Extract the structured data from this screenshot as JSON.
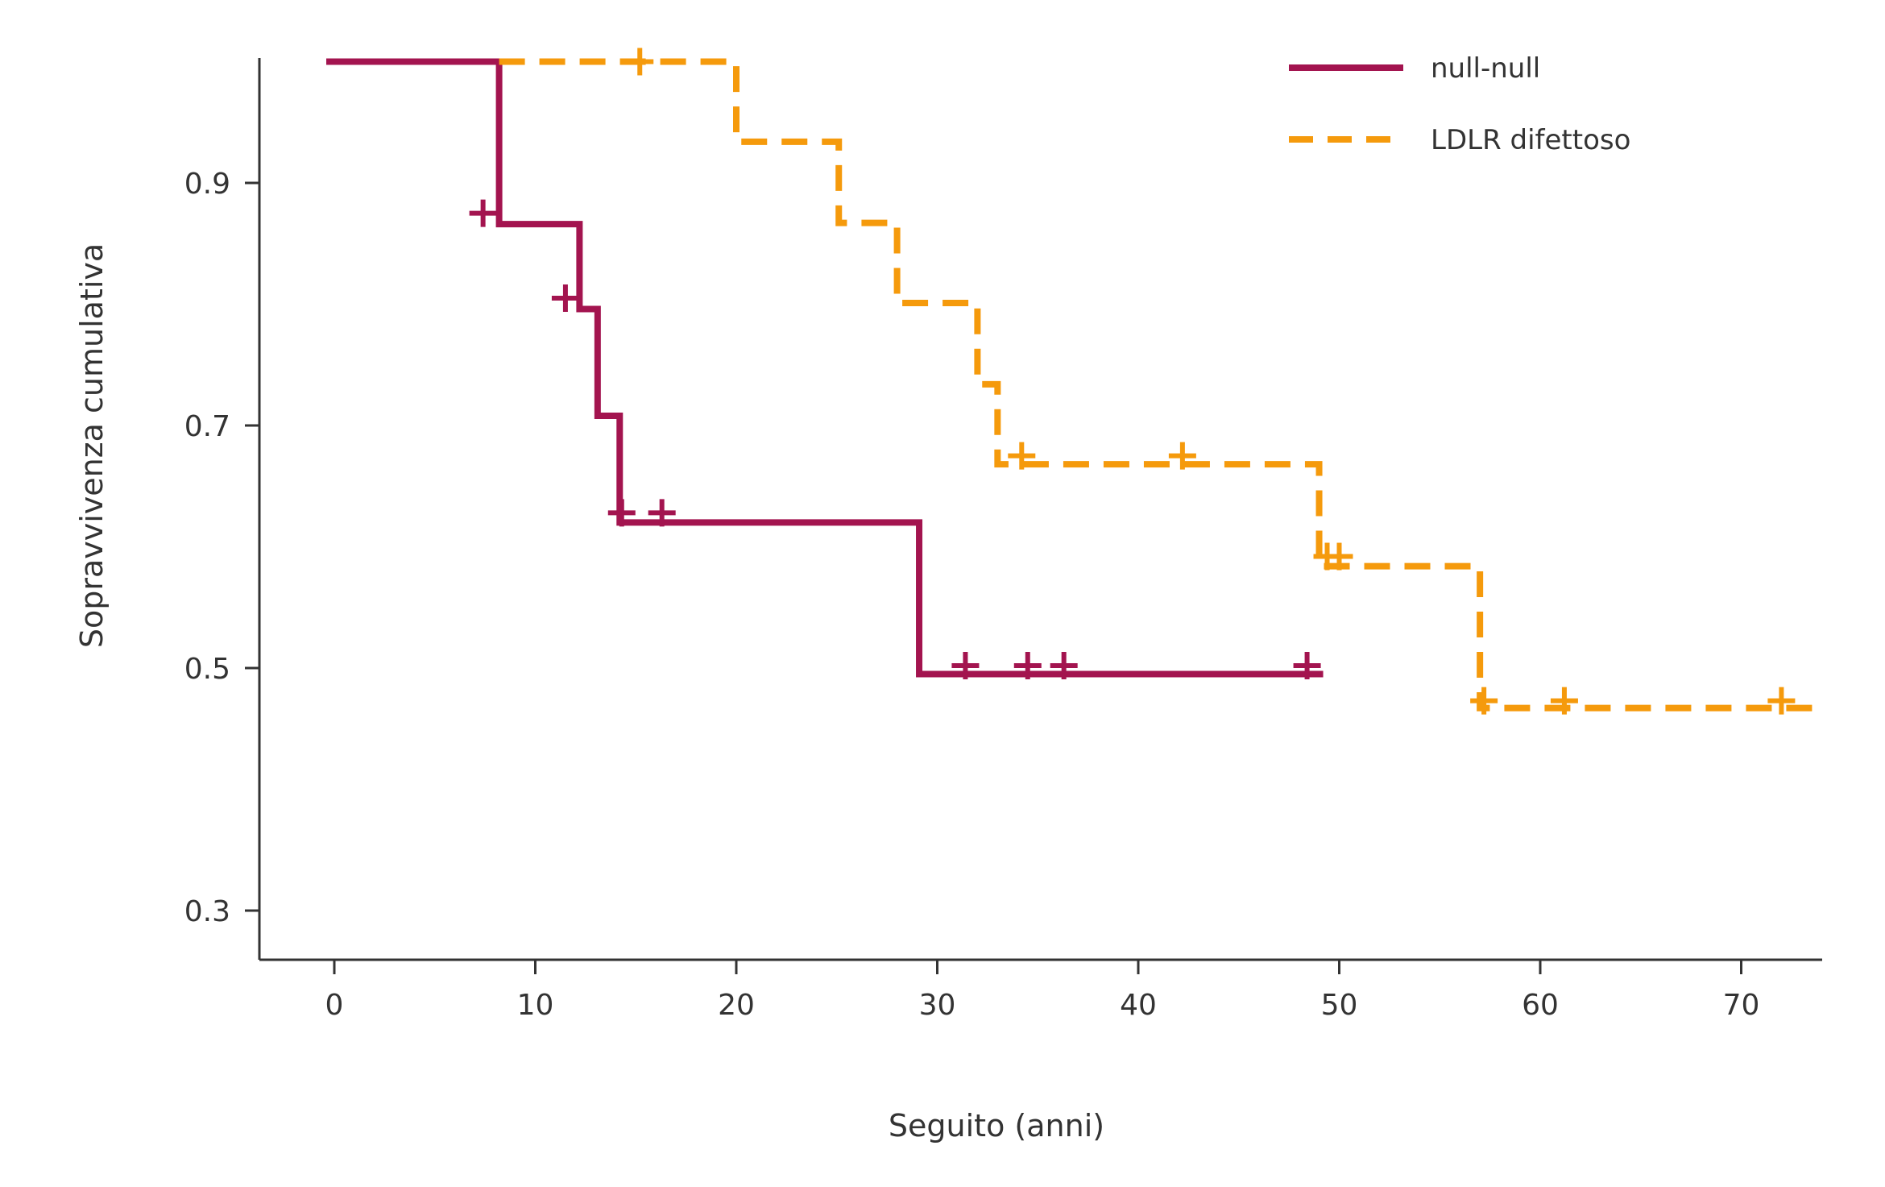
{
  "chart_data": {
    "type": "line",
    "subtype": "kaplan-meier",
    "title": "",
    "xlabel": "Seguito (anni)",
    "ylabel": "Sopravvivenza cumulativa",
    "xlim": [
      -4,
      74
    ],
    "ylim": [
      0.26,
      1.01
    ],
    "xticks": [
      0,
      10,
      20,
      30,
      40,
      50,
      60,
      70
    ],
    "xtick_labels": [
      "0",
      "10",
      "20",
      "30",
      "40",
      "50",
      "60",
      "70"
    ],
    "yticks": [
      0.3,
      0.5,
      0.7,
      0.9
    ],
    "ytick_labels": [
      "0.3",
      "0.5",
      "0.7",
      "0.9"
    ],
    "grid": false,
    "legend_position": "top-right",
    "series": [
      {
        "name": "null-null",
        "color": "#a3144f",
        "style": "solid",
        "steps": [
          [
            0,
            1.0
          ],
          [
            8.2,
            0.866
          ],
          [
            12.2,
            0.796
          ],
          [
            13.1,
            0.708
          ],
          [
            14.2,
            0.62
          ],
          [
            29.1,
            0.495
          ],
          [
            49.2,
            0.495
          ]
        ],
        "censored": [
          [
            7.4,
            0.875
          ],
          [
            11.5,
            0.805
          ],
          [
            14.3,
            0.628
          ],
          [
            16.3,
            0.628
          ],
          [
            31.4,
            0.502
          ],
          [
            34.5,
            0.502
          ],
          [
            36.3,
            0.502
          ],
          [
            48.4,
            0.502
          ]
        ]
      },
      {
        "name": "LDLR difettoso",
        "color": "#f59a0c",
        "style": "dashed",
        "steps": [
          [
            8.2,
            1.0
          ],
          [
            20.0,
            0.934
          ],
          [
            25.1,
            0.867
          ],
          [
            28.0,
            0.801
          ],
          [
            32.0,
            0.734
          ],
          [
            33.0,
            0.668
          ],
          [
            49.0,
            0.584
          ],
          [
            57.0,
            0.467
          ],
          [
            74,
            0.467
          ]
        ],
        "censored": [
          [
            15.2,
            1.0
          ],
          [
            34.2,
            0.675
          ],
          [
            42.2,
            0.675
          ],
          [
            49.4,
            0.592
          ],
          [
            50.0,
            0.592
          ],
          [
            57.2,
            0.473
          ],
          [
            61.2,
            0.473
          ],
          [
            72.0,
            0.473
          ]
        ]
      }
    ]
  }
}
